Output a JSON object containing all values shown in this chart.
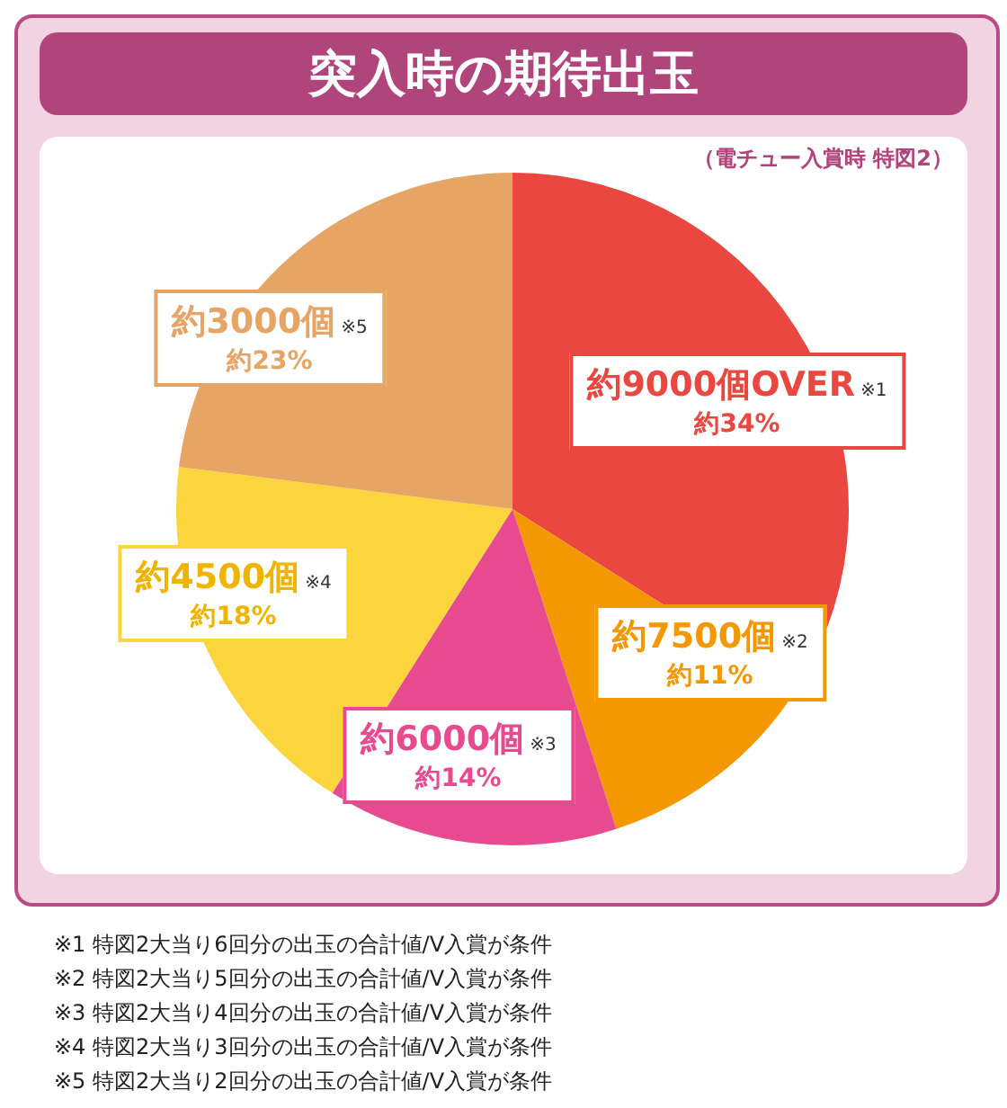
{
  "chart_data": {
    "type": "pie",
    "title": "突入時の期待出玉",
    "subtitle": "（電チュー入賞時 特図2）",
    "categories": [
      "約9000個OVER",
      "約7500個",
      "約6000個",
      "約4500個",
      "約3000個"
    ],
    "values": [
      34,
      11,
      14,
      18,
      23
    ],
    "value_labels": [
      "約34%",
      "約11%",
      "約14%",
      "約18%",
      "約23%"
    ],
    "colors": [
      "#e9473f",
      "#f39800",
      "#e84a8f",
      "#fcd43b",
      "#e6a565"
    ],
    "legend": false,
    "annotations": [
      "※1",
      "※2",
      "※3",
      "※4",
      "※5",
      "※1 特図2大当り6回分の出玉の合計値/V入賞が条件",
      "※2 特図2大当り5回分の出玉の合計値/V入賞が条件",
      "※3 特図2大当り4回分の出玉の合計値/V入賞が条件",
      "※4 特図2大当り3回分の出玉の合計値/V入賞が条件",
      "※5 特図2大当り2回分の出玉の合計値/V入賞が条件"
    ]
  }
}
